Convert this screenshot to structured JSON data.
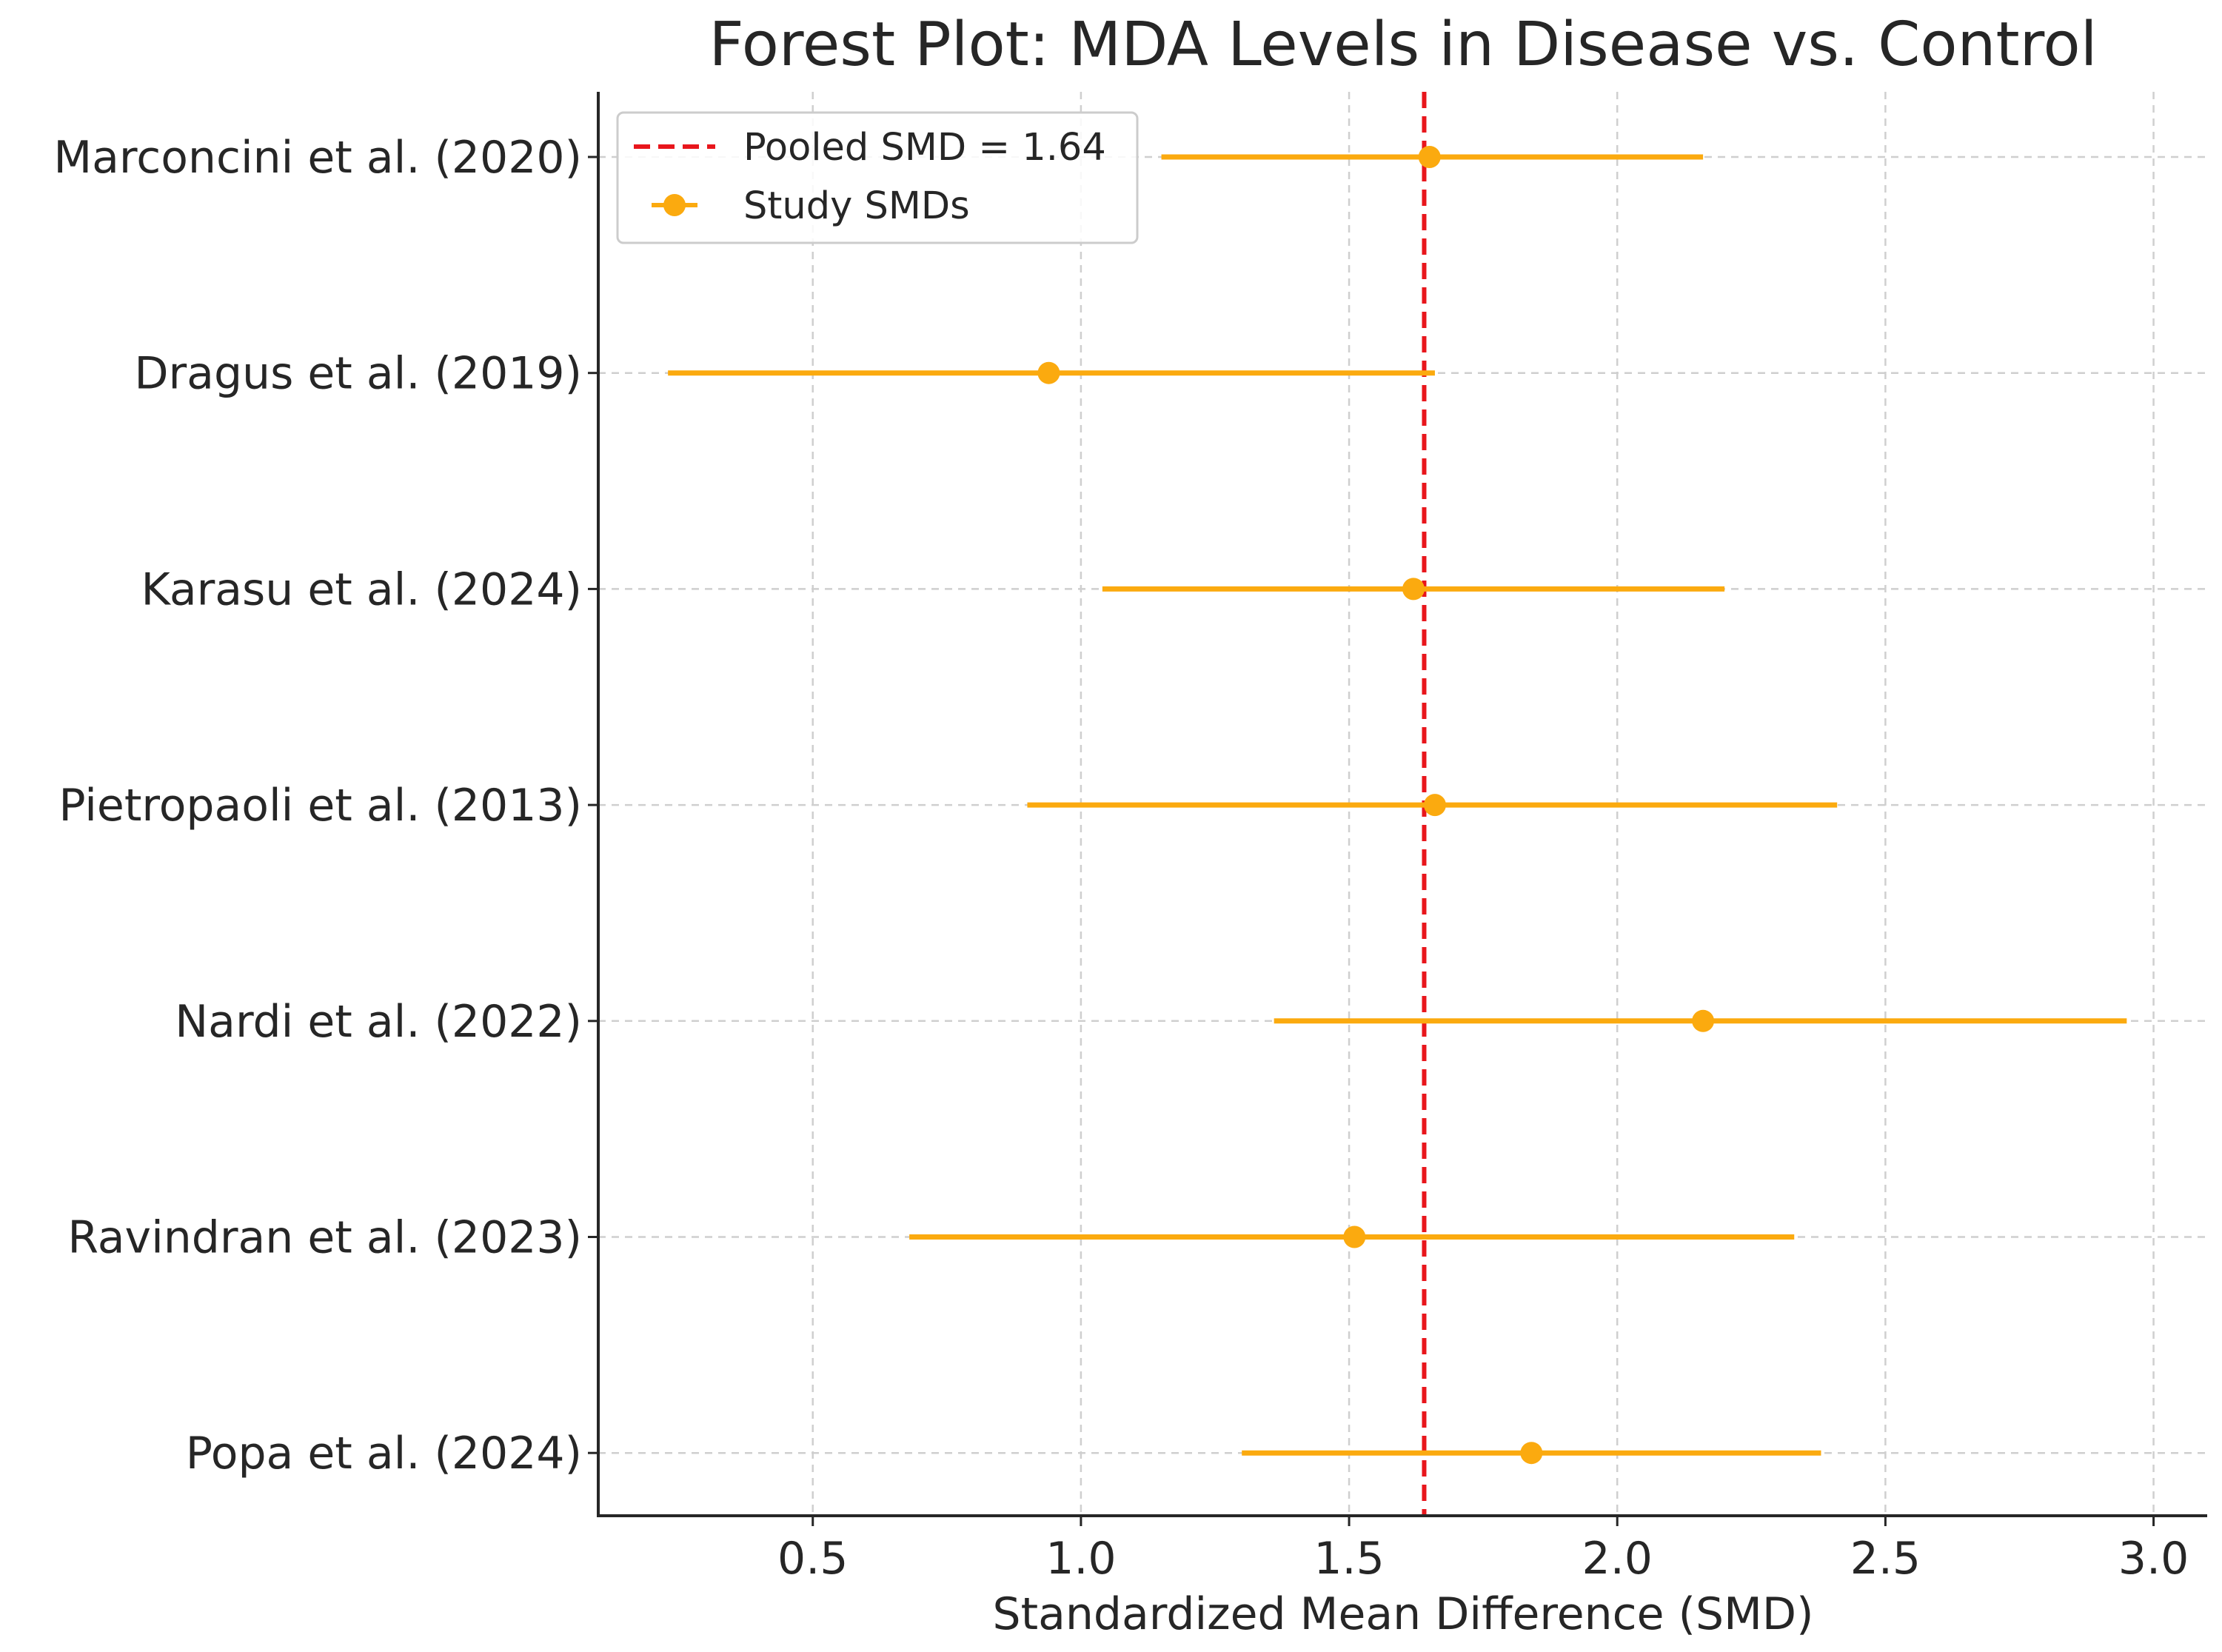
{
  "chart_data": {
    "type": "scatter",
    "subtype": "forest-plot",
    "title": "Forest Plot: MDA Levels in Disease vs. Control",
    "xlabel": "Standardized Mean Difference (SMD)",
    "ylabel": "",
    "xlim": [
      0.1,
      3.1
    ],
    "xticks": [
      0.5,
      1.0,
      1.5,
      2.0,
      2.5,
      3.0
    ],
    "xtick_labels": [
      "0.5",
      "1.0",
      "1.5",
      "2.0",
      "2.5",
      "3.0"
    ],
    "grid": true,
    "legend_position": "top-left",
    "legend": [
      {
        "label": "Pooled SMD = 1.64",
        "style": "dashed-line",
        "color": "#e8161c"
      },
      {
        "label": "Study SMDs",
        "style": "marker-errorbar",
        "color": "#fbaa0f"
      }
    ],
    "pooled_smd": 1.64,
    "studies": [
      {
        "label": "Marconcini et al. (2020)",
        "smd": 1.65,
        "ci_low": 1.15,
        "ci_high": 2.16
      },
      {
        "label": "Dragus et al. (2019)",
        "smd": 0.94,
        "ci_low": 0.23,
        "ci_high": 1.66
      },
      {
        "label": "Karasu et al. (2024)",
        "smd": 1.62,
        "ci_low": 1.04,
        "ci_high": 2.2
      },
      {
        "label": "Pietropaoli et al. (2013)",
        "smd": 1.66,
        "ci_low": 0.9,
        "ci_high": 2.41
      },
      {
        "label": "Nardi et al. (2022)",
        "smd": 2.16,
        "ci_low": 1.36,
        "ci_high": 2.95
      },
      {
        "label": "Ravindran et al. (2023)",
        "smd": 1.51,
        "ci_low": 0.68,
        "ci_high": 2.33
      },
      {
        "label": "Popa et al. (2024)",
        "smd": 1.84,
        "ci_low": 1.3,
        "ci_high": 2.38
      }
    ],
    "colors": {
      "study": "#fbaa0f",
      "pooled": "#e8161c",
      "grid": "#cfcfcf",
      "axis": "#262626"
    }
  }
}
